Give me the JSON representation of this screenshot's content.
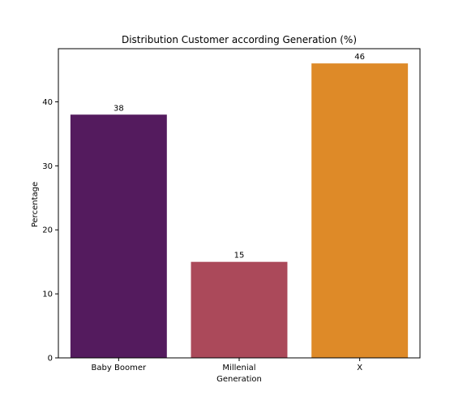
{
  "chart_data": {
    "type": "bar",
    "title": "Distribution Customer according Generation (%)",
    "xlabel": "Generation",
    "ylabel": "Percentage",
    "categories": [
      "Baby Boomer",
      "Millenial",
      "X"
    ],
    "values": [
      38,
      15,
      46
    ],
    "data_labels": [
      "38",
      "15",
      "46"
    ],
    "ylim": [
      0,
      48.3
    ],
    "yticks": [
      0,
      10,
      20,
      30,
      40
    ],
    "ytick_labels": [
      "0",
      "10",
      "20",
      "30",
      "40"
    ],
    "colors": [
      "#541b5e",
      "#ab495a",
      "#de8a28"
    ],
    "grid": false,
    "legend": "none"
  }
}
